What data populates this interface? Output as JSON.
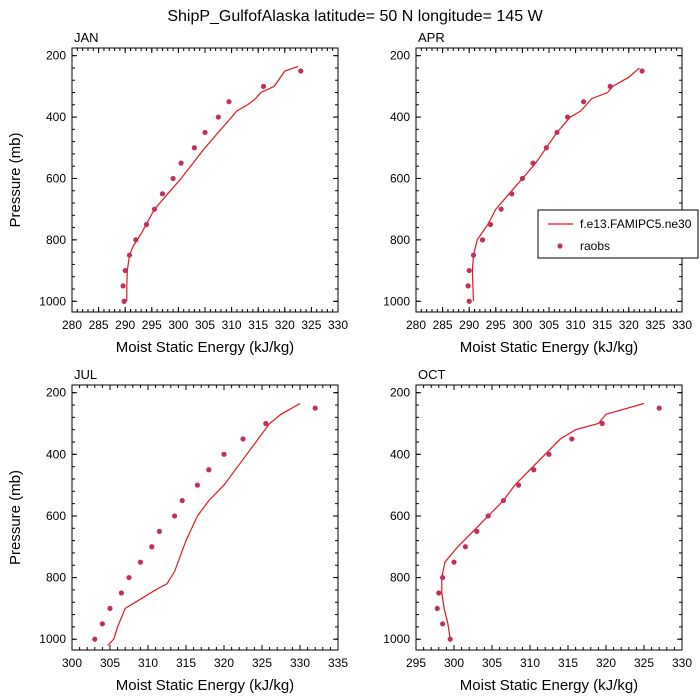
{
  "title": "ShipP_GulfofAlaska  latitude= 50 N longitude= 145 W",
  "colors": {
    "model_line": "#e8131b",
    "obs_marker": "#c0305a"
  },
  "chart_data": [
    {
      "type": "line",
      "panel_title": "JAN",
      "xlabel": "Moist Static Energy (kJ/kg)",
      "ylabel": "Pressure (mb)",
      "xlim": [
        280,
        330
      ],
      "ylim": [
        1000,
        200
      ],
      "y_scale": "linear-inverted",
      "xticks": [
        280,
        285,
        290,
        295,
        300,
        305,
        310,
        315,
        320,
        325,
        330
      ],
      "yticks": [
        200,
        400,
        600,
        800,
        1000
      ],
      "series": [
        {
          "kind": "line",
          "points": [
            [
              290.3,
              1000
            ],
            [
              290.3,
              950
            ],
            [
              290.4,
              900
            ],
            [
              290.8,
              850
            ],
            [
              291.5,
              820
            ],
            [
              293.0,
              780
            ],
            [
              295.5,
              700
            ],
            [
              298.0,
              650
            ],
            [
              300.5,
              600
            ],
            [
              305.0,
              500
            ],
            [
              307.5,
              450
            ],
            [
              310.0,
              400
            ],
            [
              311.0,
              380
            ],
            [
              313.0,
              360
            ],
            [
              314.5,
              340
            ],
            [
              315.5,
              320
            ],
            [
              318.0,
              300
            ],
            [
              320.0,
              250
            ],
            [
              322.5,
              235
            ]
          ]
        },
        {
          "kind": "scatter",
          "points": [
            [
              289.8,
              1000
            ],
            [
              289.6,
              950
            ],
            [
              290.0,
              900
            ],
            [
              290.8,
              850
            ],
            [
              292.0,
              800
            ],
            [
              294.0,
              750
            ],
            [
              295.5,
              700
            ],
            [
              297.0,
              650
            ],
            [
              299.0,
              600
            ],
            [
              300.5,
              550
            ],
            [
              303.0,
              500
            ],
            [
              305.0,
              450
            ],
            [
              307.5,
              400
            ],
            [
              309.5,
              350
            ],
            [
              316.0,
              300
            ],
            [
              323.0,
              250
            ]
          ]
        }
      ]
    },
    {
      "type": "line",
      "panel_title": "APR",
      "xlabel": "Moist Static Energy (kJ/kg)",
      "ylabel": "",
      "xlim": [
        280,
        330
      ],
      "ylim": [
        1000,
        200
      ],
      "y_scale": "linear-inverted",
      "xticks": [
        280,
        285,
        290,
        295,
        300,
        305,
        310,
        315,
        320,
        325,
        330
      ],
      "yticks": [
        200,
        400,
        600,
        800,
        1000
      ],
      "legend": {
        "position": "right",
        "entries": [
          {
            "label": "f.e13.FAMIPC5.ne30",
            "kind": "line"
          },
          {
            "label": "raobs",
            "kind": "marker"
          }
        ]
      },
      "series": [
        {
          "kind": "line",
          "points": [
            [
              290.8,
              1000
            ],
            [
              290.7,
              950
            ],
            [
              290.6,
              900
            ],
            [
              290.8,
              850
            ],
            [
              291.5,
              800
            ],
            [
              293.5,
              750
            ],
            [
              295.0,
              700
            ],
            [
              297.5,
              650
            ],
            [
              300.0,
              600
            ],
            [
              302.5,
              550
            ],
            [
              304.5,
              500
            ],
            [
              306.5,
              450
            ],
            [
              309.0,
              400
            ],
            [
              311.0,
              380
            ],
            [
              313.0,
              340
            ],
            [
              316.0,
              320
            ],
            [
              317.0,
              300
            ],
            [
              320.0,
              270
            ],
            [
              322.0,
              240
            ]
          ]
        },
        {
          "kind": "scatter",
          "points": [
            [
              290.0,
              1000
            ],
            [
              289.8,
              950
            ],
            [
              290.0,
              900
            ],
            [
              290.8,
              850
            ],
            [
              292.5,
              800
            ],
            [
              294.0,
              750
            ],
            [
              296.0,
              700
            ],
            [
              298.0,
              650
            ],
            [
              300.0,
              600
            ],
            [
              302.0,
              550
            ],
            [
              304.5,
              500
            ],
            [
              306.5,
              450
            ],
            [
              308.5,
              400
            ],
            [
              311.5,
              350
            ],
            [
              316.5,
              300
            ],
            [
              322.5,
              250
            ]
          ]
        }
      ]
    },
    {
      "type": "line",
      "panel_title": "JUL",
      "xlabel": "Moist Static Energy (kJ/kg)",
      "ylabel": "Pressure (mb)",
      "xlim": [
        300,
        335
      ],
      "ylim": [
        1000,
        200
      ],
      "y_scale": "linear-inverted",
      "xticks": [
        300,
        305,
        310,
        315,
        320,
        325,
        330,
        335
      ],
      "yticks": [
        200,
        400,
        600,
        800,
        1000
      ],
      "series": [
        {
          "kind": "line",
          "points": [
            [
              304.7,
              1020
            ],
            [
              305.5,
              1000
            ],
            [
              306.0,
              960
            ],
            [
              307.0,
              900
            ],
            [
              309.0,
              870
            ],
            [
              311.0,
              840
            ],
            [
              312.5,
              820
            ],
            [
              313.5,
              780
            ],
            [
              315.0,
              680
            ],
            [
              316.5,
              600
            ],
            [
              318.0,
              550
            ],
            [
              320.0,
              500
            ],
            [
              321.5,
              450
            ],
            [
              323.0,
              400
            ],
            [
              324.5,
              350
            ],
            [
              326.0,
              300
            ],
            [
              327.5,
              270
            ],
            [
              330.0,
              235
            ]
          ]
        },
        {
          "kind": "scatter",
          "points": [
            [
              303.0,
              1000
            ],
            [
              304.0,
              950
            ],
            [
              305.0,
              900
            ],
            [
              306.5,
              850
            ],
            [
              307.5,
              800
            ],
            [
              309.0,
              750
            ],
            [
              310.5,
              700
            ],
            [
              311.5,
              650
            ],
            [
              313.5,
              600
            ],
            [
              314.5,
              550
            ],
            [
              316.5,
              500
            ],
            [
              318.0,
              450
            ],
            [
              320.0,
              400
            ],
            [
              322.5,
              350
            ],
            [
              325.5,
              300
            ],
            [
              332.0,
              250
            ]
          ]
        }
      ]
    },
    {
      "type": "line",
      "panel_title": "OCT",
      "xlabel": "Moist Static Energy (kJ/kg)",
      "ylabel": "",
      "xlim": [
        295,
        330
      ],
      "ylim": [
        1000,
        200
      ],
      "y_scale": "linear-inverted",
      "xticks": [
        295,
        300,
        305,
        310,
        315,
        320,
        325,
        330
      ],
      "yticks": [
        200,
        400,
        600,
        800,
        1000
      ],
      "series": [
        {
          "kind": "line",
          "points": [
            [
              299.5,
              1000
            ],
            [
              299.2,
              950
            ],
            [
              298.7,
              900
            ],
            [
              298.4,
              850
            ],
            [
              298.4,
              800
            ],
            [
              298.8,
              750
            ],
            [
              300.5,
              700
            ],
            [
              302.5,
              650
            ],
            [
              304.5,
              600
            ],
            [
              306.5,
              550
            ],
            [
              308.0,
              500
            ],
            [
              310.0,
              450
            ],
            [
              312.0,
              400
            ],
            [
              314.0,
              350
            ],
            [
              316.0,
              320
            ],
            [
              319.0,
              300
            ],
            [
              320.0,
              270
            ],
            [
              325.0,
              235
            ]
          ]
        },
        {
          "kind": "scatter",
          "points": [
            [
              299.5,
              1000
            ],
            [
              298.5,
              950
            ],
            [
              297.8,
              900
            ],
            [
              298.0,
              850
            ],
            [
              298.5,
              800
            ],
            [
              300.0,
              750
            ],
            [
              301.5,
              700
            ],
            [
              303.0,
              650
            ],
            [
              304.5,
              600
            ],
            [
              306.5,
              550
            ],
            [
              308.5,
              500
            ],
            [
              310.5,
              450
            ],
            [
              312.5,
              400
            ],
            [
              315.5,
              350
            ],
            [
              319.5,
              300
            ],
            [
              327.0,
              250
            ]
          ]
        }
      ]
    }
  ]
}
